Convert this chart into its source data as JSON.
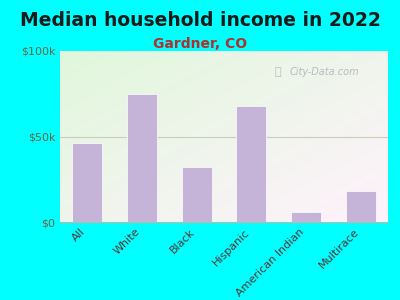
{
  "title": "Median household income in 2022",
  "subtitle": "Gardner, CO",
  "categories": [
    "All",
    "White",
    "Black",
    "Hispanic",
    "American Indian",
    "Multirace"
  ],
  "values": [
    46000,
    75000,
    32000,
    68000,
    6000,
    18000
  ],
  "bar_color": "#c5b3d8",
  "bar_edge_color": "#c5b3d8",
  "ylim": [
    0,
    100000
  ],
  "ytick_labels": [
    "$0",
    "$50k",
    "$100k"
  ],
  "title_fontsize": 13.5,
  "subtitle_fontsize": 10,
  "tick_fontsize": 8,
  "background_color": "#00FFFF",
  "watermark": "City-Data.com",
  "title_color": "#1a1a1a",
  "subtitle_color": "#b03030",
  "ytick_color": "#666644",
  "xtick_color": "#553333",
  "grid_color": "#d0d0c0",
  "hline_color": "#ccccbb"
}
